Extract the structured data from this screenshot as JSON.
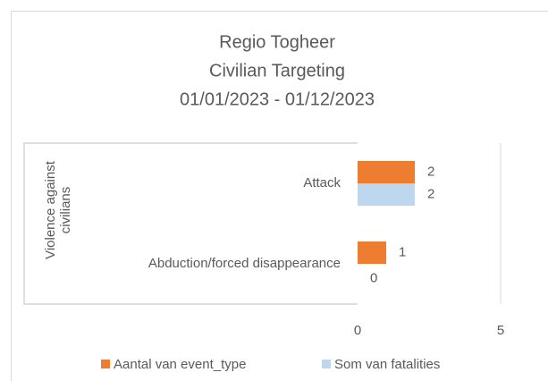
{
  "chart_data": {
    "type": "bar",
    "orientation": "horizontal",
    "title": [
      "Regio Togheer",
      "Civilian Targeting",
      "01/01/2023 - 01/12/2023"
    ],
    "group": "Violence against civilians",
    "categories": [
      "Attack",
      "Abduction/forced disappearance"
    ],
    "series": [
      {
        "name": "Aantal van event_type",
        "color": "#ED7D31",
        "values": [
          2,
          1
        ]
      },
      {
        "name": "Som van fatalities",
        "color": "#BDD7EE",
        "values": [
          2,
          0
        ]
      }
    ],
    "xlim": [
      0,
      5
    ],
    "xticks": [
      0,
      5
    ],
    "grid": true,
    "legend": "bottom"
  }
}
